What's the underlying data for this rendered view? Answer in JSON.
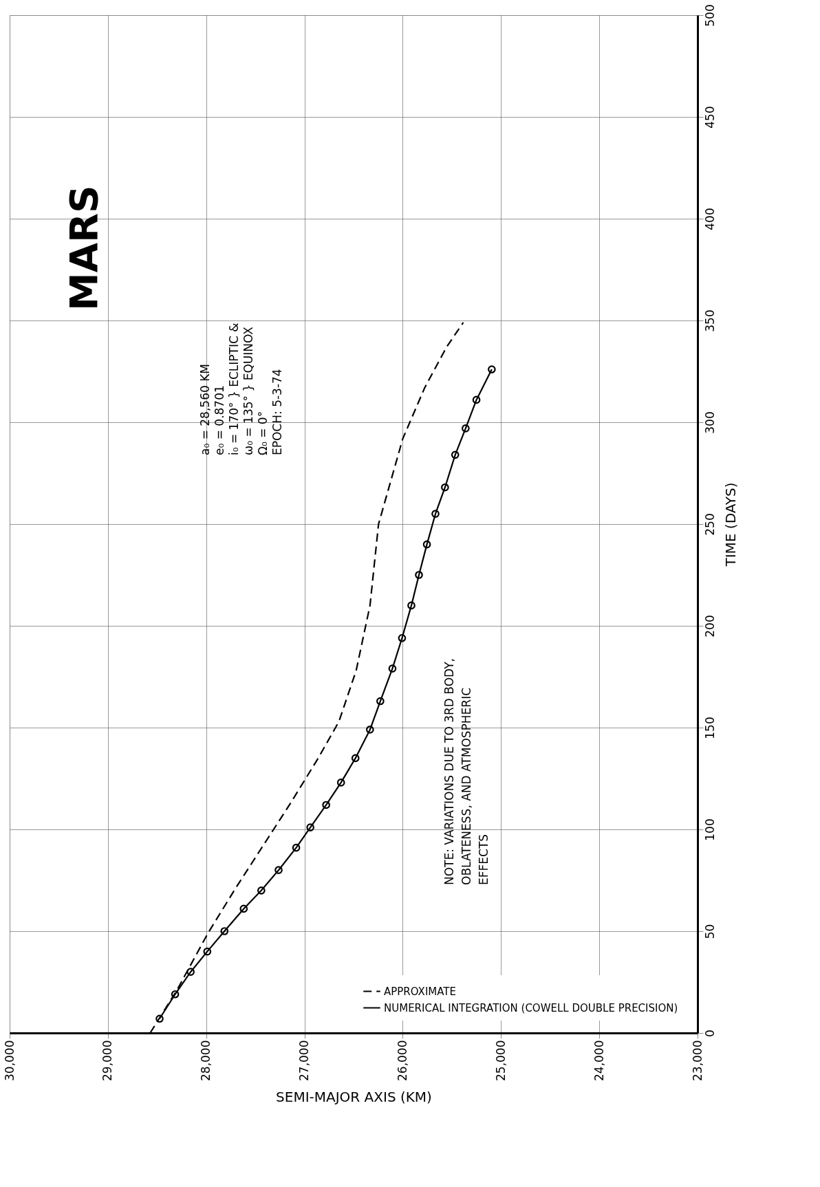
{
  "chart_data": {
    "type": "line",
    "xlabel": "SEMI-MAJOR AXIS (KM)",
    "ylabel": "TIME (DAYS)",
    "xlim": [
      30000,
      23000
    ],
    "xticks": [
      {
        "value": 30000,
        "label": "30,000"
      },
      {
        "value": 29000,
        "label": "29,000"
      },
      {
        "value": 28000,
        "label": "28,000"
      },
      {
        "value": 27000,
        "label": "27,000"
      },
      {
        "value": 26000,
        "label": "26,000"
      },
      {
        "value": 25000,
        "label": "25,000"
      },
      {
        "value": 24000,
        "label": "24,000"
      },
      {
        "value": 23000,
        "label": "23,000"
      }
    ],
    "ylim": [
      0,
      500
    ],
    "yticks": [
      0,
      50,
      100,
      150,
      200,
      250,
      300,
      350,
      400,
      450,
      500
    ],
    "grid": true,
    "legend": "bottom right",
    "annotations": [
      "MARS",
      "a₀ = 28,560 KM",
      "e₀ = 0.8701",
      "i₀ = 170° } ECLIPTIC &",
      "ω₀ = 135° } EQUINOX",
      "Ω₀ = 0°",
      "EPOCH: 5-3-74",
      "NOTE: VARIATIONS DUE TO 3RD BODY,",
      "OBLATENESS, AND ATMOSPHERIC",
      "EFFECTS"
    ],
    "series": [
      {
        "name": "APPROXIMATE",
        "color": "#000000",
        "line_style": "dashed",
        "marker": "none",
        "x": [
          28570,
          28298,
          27982,
          27702,
          27421,
          27140,
          26860,
          26649,
          26474,
          26333,
          26246,
          25999,
          25776,
          25553,
          25384
        ],
        "values": [
          0,
          21,
          49,
          71,
          92,
          113,
          135,
          153,
          178,
          210,
          250,
          292,
          317,
          337,
          349
        ]
      },
      {
        "name": "NUMERICAL INTEGRATION (COWELL DOUBLE PRECISION)",
        "color": "#000000",
        "line_style": "solid",
        "marker": "circle",
        "x": [
          28474,
          28316,
          28158,
          27989,
          27814,
          27618,
          27439,
          27263,
          27084,
          26940,
          26779,
          26628,
          26481,
          26333,
          26228,
          26105,
          26007,
          25912,
          25835,
          25754,
          25667,
          25570,
          25466,
          25360,
          25250,
          25094
        ],
        "values": [
          7,
          19,
          30,
          40,
          50,
          61,
          70,
          80,
          91,
          101,
          112,
          123,
          135,
          149,
          163,
          179,
          194,
          210,
          225,
          240,
          255,
          268,
          284,
          297,
          311,
          326
        ]
      }
    ]
  }
}
